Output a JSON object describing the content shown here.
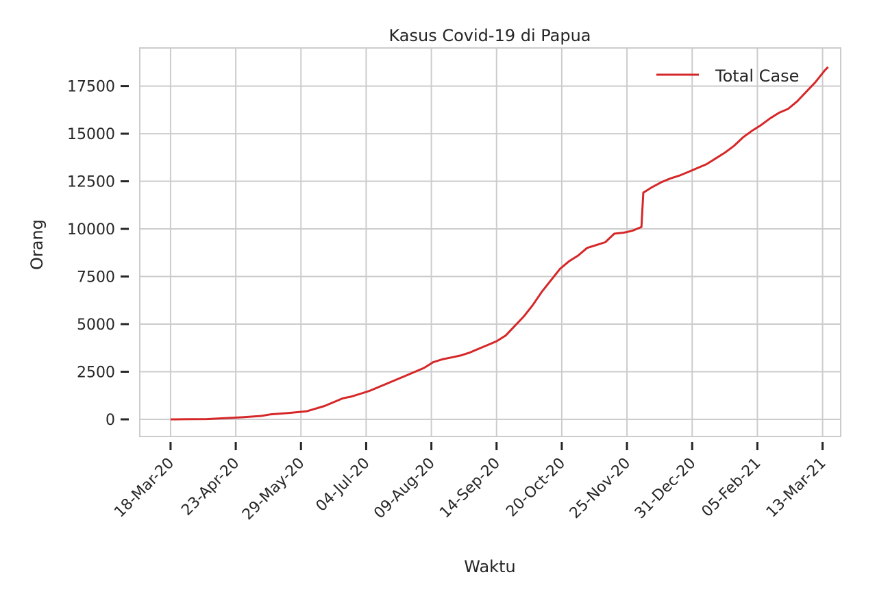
{
  "chart_data": {
    "type": "line",
    "title": "Kasus Covid-19 di Papua",
    "xlabel": "Waktu",
    "ylabel": "Orang",
    "x_tick_labels": [
      "18-Mar-20",
      "23-Apr-20",
      "29-May-20",
      "04-Jul-20",
      "09-Aug-20",
      "14-Sep-20",
      "20-Oct-20",
      "25-Nov-20",
      "31-Dec-20",
      "05-Feb-21",
      "13-Mar-21"
    ],
    "y_ticks": [
      0,
      2500,
      5000,
      7500,
      10000,
      12500,
      15000,
      17500
    ],
    "y_tick_labels": [
      "0",
      "2500",
      "5000",
      "7500",
      "10000",
      "12500",
      "15000",
      "17500"
    ],
    "xlim": [
      "2020-03-01",
      "2021-03-23"
    ],
    "ylim": [
      -900,
      19500
    ],
    "grid": true,
    "legend": {
      "position": "top-right",
      "entries": [
        "Total Case"
      ]
    },
    "series": [
      {
        "name": "Total Case",
        "color": "#d62728",
        "points": [
          [
            "2020-03-18",
            0
          ],
          [
            "2020-03-28",
            5
          ],
          [
            "2020-04-07",
            15
          ],
          [
            "2020-04-17",
            60
          ],
          [
            "2020-04-27",
            110
          ],
          [
            "2020-05-07",
            180
          ],
          [
            "2020-05-12",
            260
          ],
          [
            "2020-05-22",
            330
          ],
          [
            "2020-06-01",
            420
          ],
          [
            "2020-06-06",
            560
          ],
          [
            "2020-06-11",
            700
          ],
          [
            "2020-06-16",
            900
          ],
          [
            "2020-06-21",
            1100
          ],
          [
            "2020-06-26",
            1200
          ],
          [
            "2020-07-01",
            1350
          ],
          [
            "2020-07-06",
            1500
          ],
          [
            "2020-07-11",
            1700
          ],
          [
            "2020-07-16",
            1900
          ],
          [
            "2020-07-21",
            2100
          ],
          [
            "2020-07-26",
            2300
          ],
          [
            "2020-07-31",
            2500
          ],
          [
            "2020-08-05",
            2700
          ],
          [
            "2020-08-10",
            3000
          ],
          [
            "2020-08-15",
            3150
          ],
          [
            "2020-08-20",
            3250
          ],
          [
            "2020-08-25",
            3350
          ],
          [
            "2020-08-30",
            3500
          ],
          [
            "2020-09-04",
            3700
          ],
          [
            "2020-09-09",
            3900
          ],
          [
            "2020-09-14",
            4100
          ],
          [
            "2020-09-19",
            4400
          ],
          [
            "2020-09-24",
            4900
          ],
          [
            "2020-09-29",
            5400
          ],
          [
            "2020-10-04",
            6000
          ],
          [
            "2020-10-09",
            6700
          ],
          [
            "2020-10-14",
            7300
          ],
          [
            "2020-10-19",
            7900
          ],
          [
            "2020-10-24",
            8300
          ],
          [
            "2020-10-29",
            8600
          ],
          [
            "2020-11-03",
            9000
          ],
          [
            "2020-11-08",
            9150
          ],
          [
            "2020-11-13",
            9300
          ],
          [
            "2020-11-18",
            9750
          ],
          [
            "2020-11-23",
            9800
          ],
          [
            "2020-11-28",
            9900
          ],
          [
            "2020-12-03",
            10100
          ],
          [
            "2020-12-04",
            11900
          ],
          [
            "2020-12-09",
            12200
          ],
          [
            "2020-12-14",
            12450
          ],
          [
            "2020-12-19",
            12650
          ],
          [
            "2020-12-24",
            12800
          ],
          [
            "2020-12-29",
            13000
          ],
          [
            "2021-01-03",
            13200
          ],
          [
            "2021-01-08",
            13400
          ],
          [
            "2021-01-13",
            13700
          ],
          [
            "2021-01-18",
            14000
          ],
          [
            "2021-01-23",
            14350
          ],
          [
            "2021-01-28",
            14800
          ],
          [
            "2021-02-02",
            15150
          ],
          [
            "2021-02-07",
            15450
          ],
          [
            "2021-02-12",
            15800
          ],
          [
            "2021-02-17",
            16100
          ],
          [
            "2021-02-22",
            16300
          ],
          [
            "2021-02-27",
            16700
          ],
          [
            "2021-03-04",
            17200
          ],
          [
            "2021-03-09",
            17700
          ],
          [
            "2021-03-14",
            18300
          ],
          [
            "2021-03-16",
            18500
          ]
        ]
      }
    ]
  }
}
